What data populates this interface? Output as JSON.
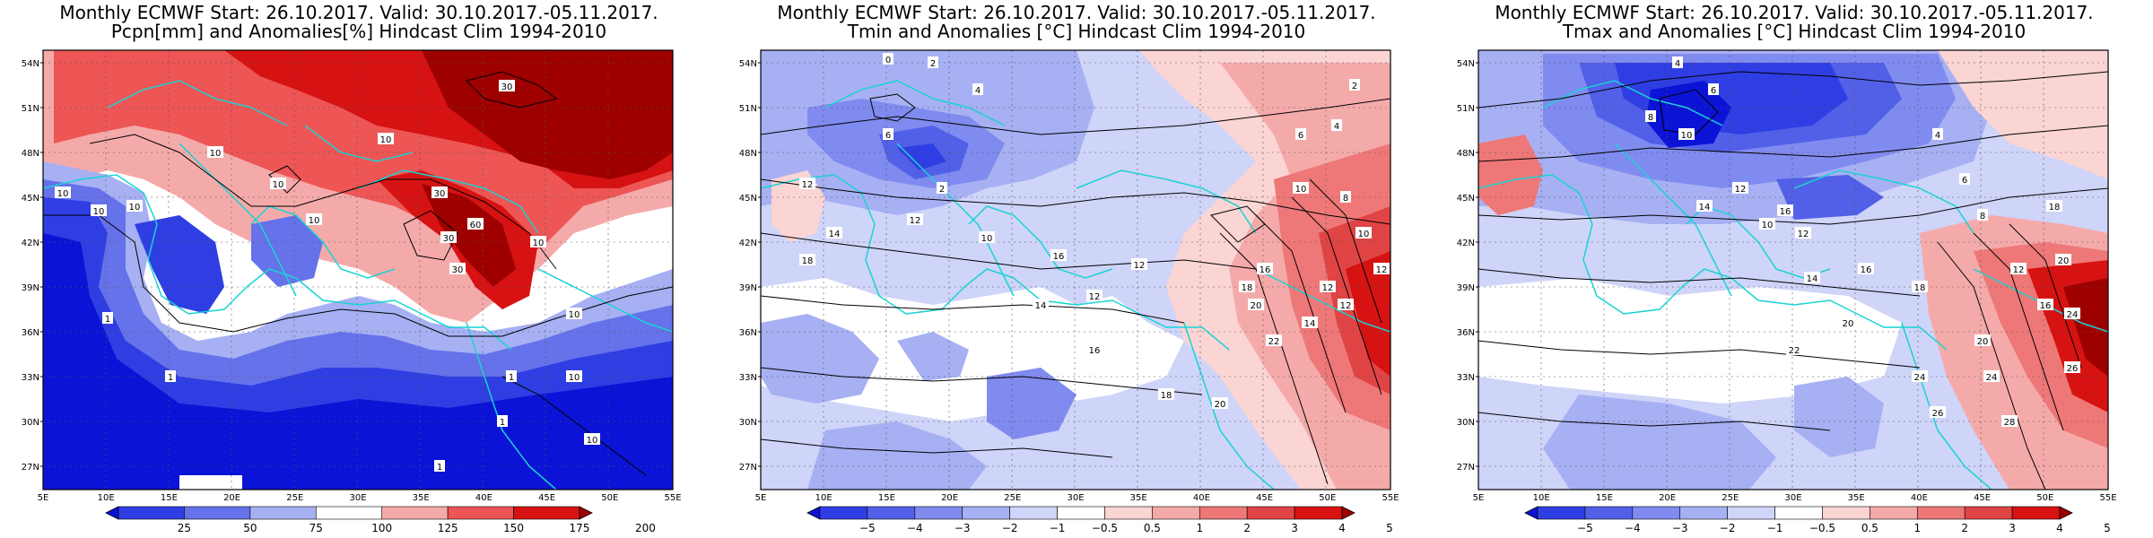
{
  "lon_ticks": [
    "5E",
    "10E",
    "15E",
    "20E",
    "25E",
    "30E",
    "35E",
    "40E",
    "45E",
    "50E",
    "55E"
  ],
  "lat_ticks": [
    "54N",
    "51N",
    "48N",
    "45N",
    "42N",
    "39N",
    "36N",
    "33N",
    "30N",
    "27N"
  ],
  "coastline_color": "#19d3d3",
  "panels": [
    {
      "title_line1": "Monthly ECMWF Start: 26.10.2017. Valid: 30.10.2017.-05.11.2017.",
      "title_line2": "Pcpn[mm] and Anomalies[%] Hindcast Clim 1994-2010",
      "colorbar": {
        "labels": [
          "25",
          "50",
          "75",
          "100",
          "125",
          "150",
          "175",
          "200"
        ],
        "colors": [
          "#0b13d6",
          "#2f3ee3",
          "#6672ea",
          "#a7b0f3",
          "#ffffff",
          "#f5aaaa",
          "#ee5555",
          "#d61212",
          "#9e0000"
        ]
      },
      "contour_labels": [
        "30",
        "10",
        "10",
        "10",
        "10",
        "10",
        "30",
        "60",
        "30",
        "30",
        "10",
        "10",
        "1",
        "1",
        "1",
        "1",
        "1",
        "10",
        "10",
        "10",
        "10"
      ]
    },
    {
      "title_line1": "Monthly ECMWF Start: 26.10.2017. Valid: 30.10.2017.-05.11.2017.",
      "title_line2": "Tmin and Anomalies [°C] Hindcast Clim 1994-2010",
      "colorbar": {
        "labels": [
          "−5",
          "−4",
          "−3",
          "−2",
          "−1",
          "−0.5",
          "0.5",
          "1",
          "2",
          "3",
          "4",
          "5"
        ],
        "colors": [
          "#0b13d6",
          "#2f3ee3",
          "#5260e8",
          "#7f8bef",
          "#a7b0f3",
          "#cfd4f9",
          "#ffffff",
          "#fbd4d4",
          "#f5aaaa",
          "#ee7777",
          "#e04444",
          "#d61212",
          "#9e0000"
        ]
      },
      "contour_labels": [
        "0",
        "2",
        "4",
        "2",
        "6",
        "12",
        "14",
        "18",
        "12",
        "10",
        "16",
        "12",
        "12",
        "14",
        "16",
        "18",
        "20",
        "22",
        "20",
        "18",
        "16",
        "14",
        "12",
        "10",
        "12",
        "4",
        "2",
        "6",
        "8",
        "10",
        "12"
      ]
    },
    {
      "title_line1": "Monthly ECMWF Start: 26.10.2017. Valid: 30.10.2017.-05.11.2017.",
      "title_line2": "Tmax and Anomalies [°C] Hindcast Clim 1994-2010",
      "colorbar": {
        "labels": [
          "−5",
          "−4",
          "−3",
          "−2",
          "−1",
          "−0.5",
          "0.5",
          "1",
          "2",
          "3",
          "4",
          "5"
        ],
        "colors": [
          "#0b13d6",
          "#2f3ee3",
          "#5260e8",
          "#7f8bef",
          "#a7b0f3",
          "#cfd4f9",
          "#ffffff",
          "#fbd4d4",
          "#f5aaaa",
          "#ee7777",
          "#e04444",
          "#d61212",
          "#9e0000"
        ]
      },
      "contour_labels": [
        "4",
        "6",
        "8",
        "10",
        "12",
        "14",
        "16",
        "10",
        "12",
        "14",
        "16",
        "18",
        "20",
        "22",
        "24",
        "26",
        "28",
        "24",
        "20",
        "16",
        "12",
        "8",
        "6",
        "4",
        "18",
        "20",
        "24",
        "26"
      ]
    }
  ]
}
